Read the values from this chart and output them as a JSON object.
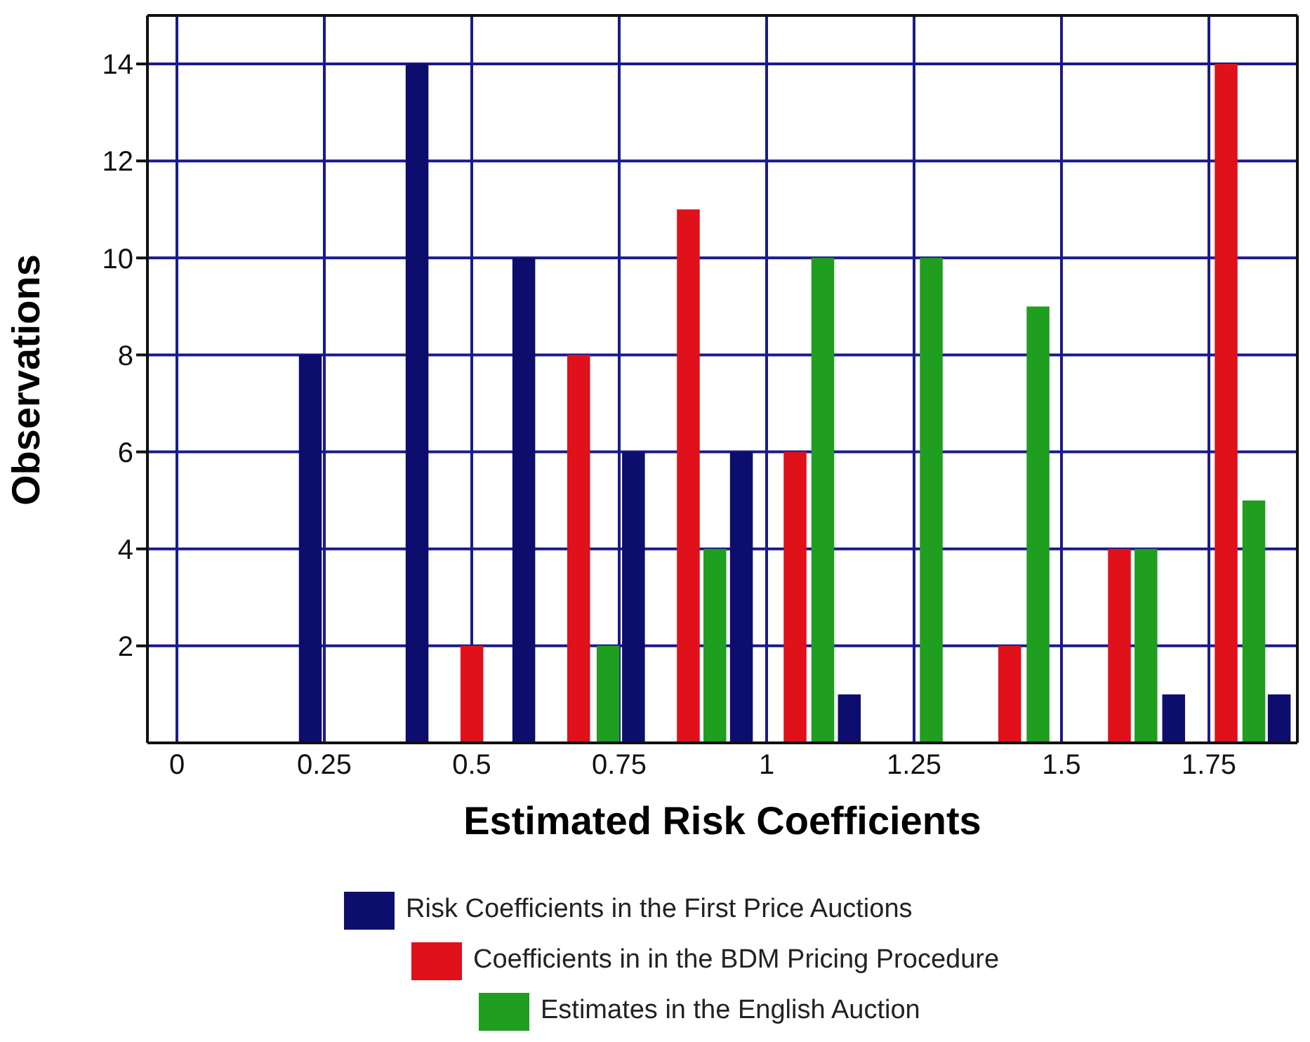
{
  "chart_data": {
    "type": "bar",
    "xlabel": "Estimated Risk Coefficients",
    "ylabel": "Observations",
    "series": [
      {
        "name": "Risk Coefficients in the First Price Auctions",
        "color": "#0d0d6e",
        "x": [
          0.226,
          0.407,
          0.588,
          0.774,
          0.957,
          1.14,
          1.69,
          1.869
        ],
        "values": [
          8,
          14,
          10,
          6,
          6,
          1,
          1,
          1
        ]
      },
      {
        "name": "Coefficients in in the BDM Pricing Procedure",
        "color": "#e0111b",
        "x": [
          0.5,
          0.681,
          0.867,
          1.048,
          1.412,
          1.598,
          1.779
        ],
        "values": [
          2,
          8,
          11,
          6,
          2,
          4,
          14
        ]
      },
      {
        "name": "Estimates in the English Auction",
        "color": "#1f9e1f",
        "x": [
          0.731,
          0.912,
          1.095,
          1.279,
          1.46,
          1.643,
          1.826
        ],
        "values": [
          2,
          4,
          10,
          10,
          9,
          4,
          5
        ]
      }
    ],
    "xlim": [
      -0.05,
      1.9
    ],
    "xticks": [
      0,
      0.25,
      0.5,
      0.75,
      1,
      1.25,
      1.5,
      1.75
    ],
    "ylim": [
      0,
      15
    ],
    "yticks": [
      2,
      4,
      6,
      8,
      10,
      12,
      14
    ],
    "grid": true,
    "legend": "bottom"
  }
}
